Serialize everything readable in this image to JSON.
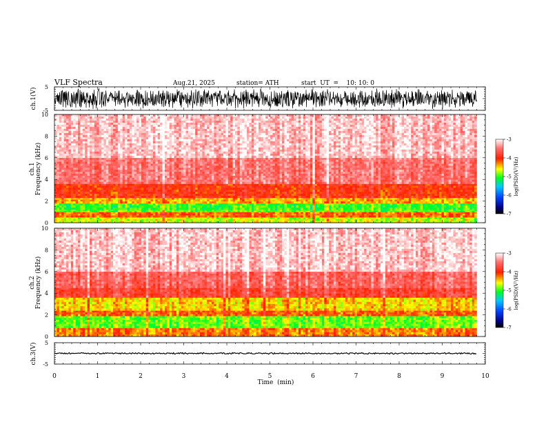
{
  "header": {
    "title": "VLF  Spectra",
    "date": "Aug.21, 2025",
    "station": "station= ATH",
    "start": "start  UT  =    10: 10: 0"
  },
  "chart_data": [
    {
      "type": "line",
      "name": "ch.1 waveform",
      "ylabel": "ch.1(V)",
      "ylim": [
        -5,
        5
      ],
      "yticks": [
        "5",
        "-5"
      ],
      "xlim": [
        0,
        10
      ],
      "data_end_min": 9.8,
      "amplitude_v": 4.5
    },
    {
      "type": "heatmap",
      "name": "ch.1 spectrogram",
      "ylabel_top": "ch.1",
      "ylabel": "Frequency  (kHz)",
      "ylim": [
        0,
        10
      ],
      "yticks": [
        "0",
        "2",
        "4",
        "6",
        "8",
        "10"
      ],
      "xlim": [
        0,
        10
      ],
      "data_end_min": 9.8,
      "colorbar": {
        "label": "log(PSD)(V²/Hz)",
        "range": [
          -7,
          -3
        ],
        "ticks": [
          "-3",
          "-4",
          "-5",
          "-6",
          "-7"
        ]
      },
      "bands": [
        {
          "from_khz": 0.0,
          "to_khz": 0.5,
          "log_psd": -4.7
        },
        {
          "from_khz": 0.5,
          "to_khz": 1.0,
          "log_psd": -4.2
        },
        {
          "from_khz": 1.0,
          "to_khz": 1.2,
          "log_psd": -4.9
        },
        {
          "from_khz": 1.2,
          "to_khz": 1.8,
          "log_psd": -5.0
        },
        {
          "from_khz": 1.8,
          "to_khz": 2.3,
          "log_psd": -4.4
        },
        {
          "from_khz": 2.3,
          "to_khz": 3.6,
          "log_psd": -4.0
        },
        {
          "from_khz": 3.6,
          "to_khz": 6.0,
          "log_psd": -3.5
        },
        {
          "from_khz": 6.0,
          "to_khz": 10.0,
          "log_psd": -3.2
        }
      ]
    },
    {
      "type": "heatmap",
      "name": "ch.2 spectrogram",
      "ylabel_top": "ch.2",
      "ylabel": "Frequency  (kHz)",
      "ylim": [
        0,
        10
      ],
      "yticks": [
        "0",
        "2",
        "4",
        "6",
        "8",
        "10"
      ],
      "xlim": [
        0,
        10
      ],
      "data_end_min": 9.8,
      "colorbar": {
        "label": "log(PSD)(V²/Hz)",
        "range": [
          -7,
          -3
        ],
        "ticks": [
          "-3",
          "-4",
          "-5",
          "-6",
          "-7"
        ]
      },
      "bands": [
        {
          "from_khz": 0.0,
          "to_khz": 0.8,
          "log_psd": -4.3
        },
        {
          "from_khz": 0.8,
          "to_khz": 1.9,
          "log_psd": -4.9
        },
        {
          "from_khz": 1.9,
          "to_khz": 2.4,
          "log_psd": -4.2
        },
        {
          "from_khz": 2.4,
          "to_khz": 3.6,
          "log_psd": -4.5
        },
        {
          "from_khz": 3.6,
          "to_khz": 4.5,
          "log_psd": -3.8
        },
        {
          "from_khz": 4.5,
          "to_khz": 6.0,
          "log_psd": -3.6
        },
        {
          "from_khz": 6.0,
          "to_khz": 10.0,
          "log_psd": -3.2
        }
      ]
    },
    {
      "type": "line",
      "name": "ch.3 waveform",
      "ylabel": "ch.3(V)",
      "ylim": [
        -5,
        5
      ],
      "yticks": [
        "5",
        "-5"
      ],
      "xlim": [
        0,
        10
      ],
      "data_end_min": 9.8,
      "amplitude_v": 0.4
    }
  ],
  "xaxis": {
    "label": "Time  (min)",
    "ticks": [
      "0",
      "1",
      "2",
      "3",
      "4",
      "5",
      "6",
      "7",
      "8",
      "9",
      "10"
    ]
  },
  "colors": {
    "ink": "#000000",
    "background": "#ffffff"
  }
}
